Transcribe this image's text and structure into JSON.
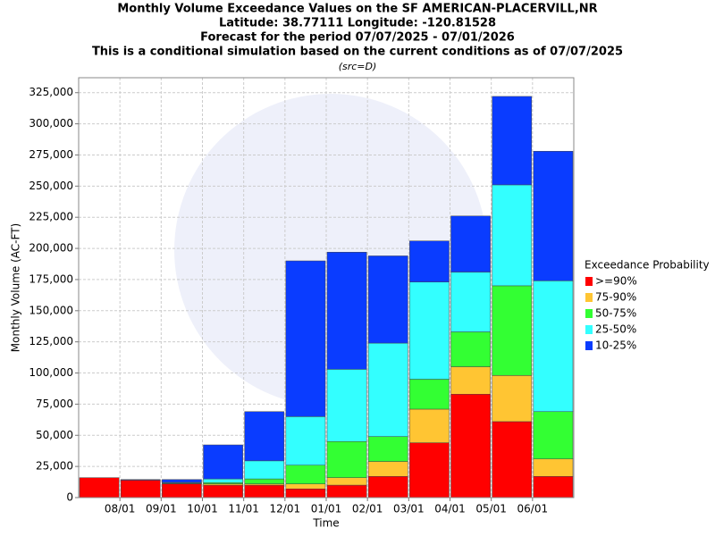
{
  "chart_data": {
    "type": "stacked_bar",
    "title": [
      "Monthly Volume Exceedance Values on the SF AMERICAN-PLACERVILL,NR",
      "Latitude: 38.77111 Longitude: -120.81528",
      "Forecast for the period 07/07/2025 - 07/01/2026",
      "This is a conditional simulation based on the current conditions as of 07/07/2025"
    ],
    "subtitle": "(src=D)",
    "x_label": "Time",
    "y_label": "Monthly Volume (AC-FT)",
    "legend_title": "Exceedance Probability",
    "legend": "right",
    "grid": true,
    "categories": [
      null,
      "08/01",
      "09/01",
      "10/01",
      "11/01",
      "12/01",
      "01/01",
      "02/01",
      "03/01",
      "04/01",
      "05/01",
      "06/01"
    ],
    "ylim": [
      0,
      337000
    ],
    "yticks": [
      0,
      {
        "value": 25000,
        "label": "25,000"
      },
      {
        "value": 50000,
        "label": "50,000"
      },
      {
        "value": 75000,
        "label": "75,000"
      },
      {
        "value": 100000,
        "label": "100,000"
      },
      {
        "value": 125000,
        "label": "125,000"
      },
      {
        "value": 150000,
        "label": "150,000"
      },
      {
        "value": 175000,
        "label": "175,000"
      },
      {
        "value": 200000,
        "label": "200,000"
      },
      {
        "value": 225000,
        "label": "225,000"
      },
      {
        "value": 250000,
        "label": "250,000"
      },
      {
        "value": 275000,
        "label": "275,000"
      },
      {
        "value": 300000,
        "label": "300,000"
      },
      {
        "value": 325000,
        "label": "325,000"
      }
    ],
    "series": [
      {
        "name": ">=90%",
        "color": "#ff0000",
        "values": [
          16000,
          14000,
          11000,
          10000,
          10000,
          7000,
          10000,
          17000,
          44000,
          83000,
          61000,
          17000
        ]
      },
      {
        "name": "75-90%",
        "color": "#ffc533",
        "values": [
          0,
          0,
          300,
          1000,
          1000,
          4000,
          6000,
          12000,
          27000,
          22000,
          37000,
          14000
        ]
      },
      {
        "name": "50-75%",
        "color": "#33ff33",
        "values": [
          0,
          0,
          300,
          1000,
          4000,
          15000,
          29000,
          20000,
          24000,
          28000,
          72000,
          38000
        ]
      },
      {
        "name": "25-50%",
        "color": "#33ffff",
        "values": [
          0,
          0,
          600,
          3000,
          14500,
          39000,
          58000,
          75000,
          78000,
          48000,
          81000,
          105000
        ]
      },
      {
        "name": "10-25%",
        "color": "#0a3cff",
        "values": [
          0,
          500,
          2300,
          27300,
          39500,
          125000,
          94000,
          70000,
          33000,
          45000,
          71000,
          104000
        ]
      }
    ]
  }
}
